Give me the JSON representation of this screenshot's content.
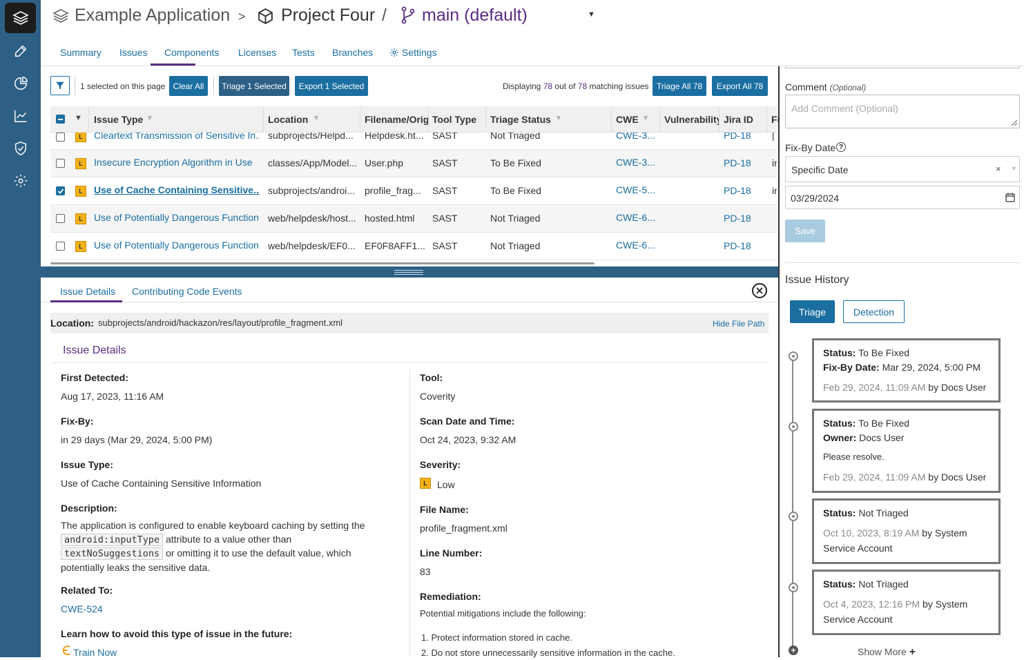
{
  "breadcrumb": {
    "app": "Example Application",
    "sep1": ">",
    "project": "Project Four",
    "sep2": "/",
    "branch": "main (default)",
    "caret": "▼"
  },
  "tabs": [
    "Summary",
    "Issues",
    "Components",
    "Licenses",
    "Tests",
    "Branches",
    "Settings"
  ],
  "toolbar": {
    "selected_text": "1 selected on this page",
    "clear_all": "Clear All",
    "triage_selected": "Triage 1 Selected",
    "export_selected": "Export 1 Selected",
    "displaying_prefix": "Displaying",
    "displaying_count": "78",
    "displaying_mid": "out of",
    "displaying_total": "78",
    "displaying_suffix": "matching issues",
    "triage_all": "Triage All 78",
    "export_all": "Export All 78"
  },
  "table": {
    "columns": [
      "Issue Type",
      "Location",
      "Filename/Orig",
      "Tool Type",
      "Triage Status",
      "CWE",
      "Vulnerability",
      "Jira ID",
      "Fi"
    ],
    "rows": [
      {
        "checked": false,
        "severity": "L",
        "issue": "Cleartext Transmission of Sensitive In...",
        "location": "subprojects/Helpd...",
        "filename": "Helpdesk.ht...",
        "tool": "SAST",
        "status": "Not Triaged",
        "cwe": "CWE-3...",
        "jira": "PD-18",
        "fi": "|"
      },
      {
        "checked": false,
        "severity": "L",
        "issue": "Insecure Encryption Algorithm in Use",
        "location": "classes/App/Model...",
        "filename": "User.php",
        "tool": "SAST",
        "status": "To Be Fixed",
        "cwe": "CWE-3...",
        "jira": "PD-18",
        "fi": "in"
      },
      {
        "checked": true,
        "severity": "L",
        "issue": "Use of Cache Containing Sensitive...",
        "location": "subprojects/androi...",
        "filename": "profile_frag...",
        "tool": "SAST",
        "status": "To Be Fixed",
        "cwe": "CWE-5...",
        "jira": "PD-18",
        "fi": "in"
      },
      {
        "checked": false,
        "severity": "L",
        "issue": "Use of Potentially Dangerous Function",
        "location": "web/helpdesk/host...",
        "filename": "hosted.html",
        "tool": "SAST",
        "status": "Not Triaged",
        "cwe": "CWE-6...",
        "jira": "PD-18",
        "fi": ""
      },
      {
        "checked": false,
        "severity": "L",
        "issue": "Use of Potentially Dangerous Function",
        "location": "web/helpdesk/EF0...",
        "filename": "EF0F8AFF1...",
        "tool": "SAST",
        "status": "Not Triaged",
        "cwe": "CWE-6...",
        "jira": "PD-18",
        "fi": ""
      }
    ]
  },
  "detail": {
    "tabs": [
      "Issue Details",
      "Contributing Code Events"
    ],
    "location_label": "Location:",
    "location_value": "subprojects/android/hackazon/res/layout/profile_fragment.xml",
    "hide_path": "Hide File Path",
    "section_title": "Issue Details",
    "first_detected_label": "First Detected:",
    "first_detected": "Aug 17, 2023, 11:16 AM",
    "fix_by_label": "Fix-By:",
    "fix_by": "in 29 days (Mar 29, 2024, 5:00 PM)",
    "issue_type_label": "Issue Type:",
    "issue_type": "Use of Cache Containing Sensitive Information",
    "description_label": "Description:",
    "desc_1": "The application is configured to enable keyboard caching by setting the",
    "desc_code1": "android:inputType",
    "desc_2": "attribute to a value other than",
    "desc_code2": "textNoSuggestions",
    "desc_3": "or omitting it to use the default value, which",
    "desc_4": "potentially leaks the sensitive data.",
    "related_label": "Related To:",
    "related": "CWE-524",
    "learn_label": "Learn how to avoid this type of issue in the future:",
    "train_now": "Train Now",
    "tool_label": "Tool:",
    "tool": "Coverity",
    "scan_label": "Scan Date and Time:",
    "scan": "Oct 24, 2023, 9:32 AM",
    "severity_label": "Severity:",
    "severity_badge": "L",
    "severity": "Low",
    "file_label": "File Name:",
    "file": "profile_fragment.xml",
    "line_label": "Line Number:",
    "line": "83",
    "remediation_label": "Remediation:",
    "remediation_intro": "Potential mitigations include the following:",
    "rem_1": "1. Protect information stored in cache.",
    "rem_2": "2. Do not store unnecessarily sensitive information in the cache."
  },
  "right": {
    "comment_label": "Comment",
    "comment_optional": "(Optional)",
    "comment_placeholder": "Add Comment (Optional)",
    "fixby_label": "Fix-By Date",
    "fixby_select": "Specific Date",
    "fixby_date": "03/29/2024",
    "save": "Save",
    "history_title": "Issue History",
    "btn_triage": "Triage",
    "btn_detection": "Detection",
    "show_more": "Show More",
    "history": [
      {
        "status": "To Be Fixed",
        "extra_label": "Fix-By Date:",
        "extra": "Mar 29, 2024, 5:00 PM",
        "note": "",
        "date": "Feb 29, 2024, 11:09 AM",
        "by": "by",
        "user": "Docs User"
      },
      {
        "status": "To Be Fixed",
        "extra_label": "Owner:",
        "extra": "Docs User",
        "note": "Please resolve.",
        "date": "Feb 29, 2024, 11:09 AM",
        "by": "by",
        "user": "Docs User"
      },
      {
        "status": "Not Triaged",
        "date": "Oct 10, 2023, 8:19 AM",
        "by": "by",
        "user": "System",
        "user2": "Service Account"
      },
      {
        "status": "Not Triaged",
        "date": "Oct 4, 2023, 12:16 PM",
        "by": "by",
        "user": "System",
        "user2": "Service Account"
      }
    ],
    "status_label": "Status:"
  },
  "colors": {
    "accent": "#1a6ea0",
    "sidebar": "#2e5f84",
    "purple": "#5a2d82",
    "severity_low": "#f2b11a"
  }
}
